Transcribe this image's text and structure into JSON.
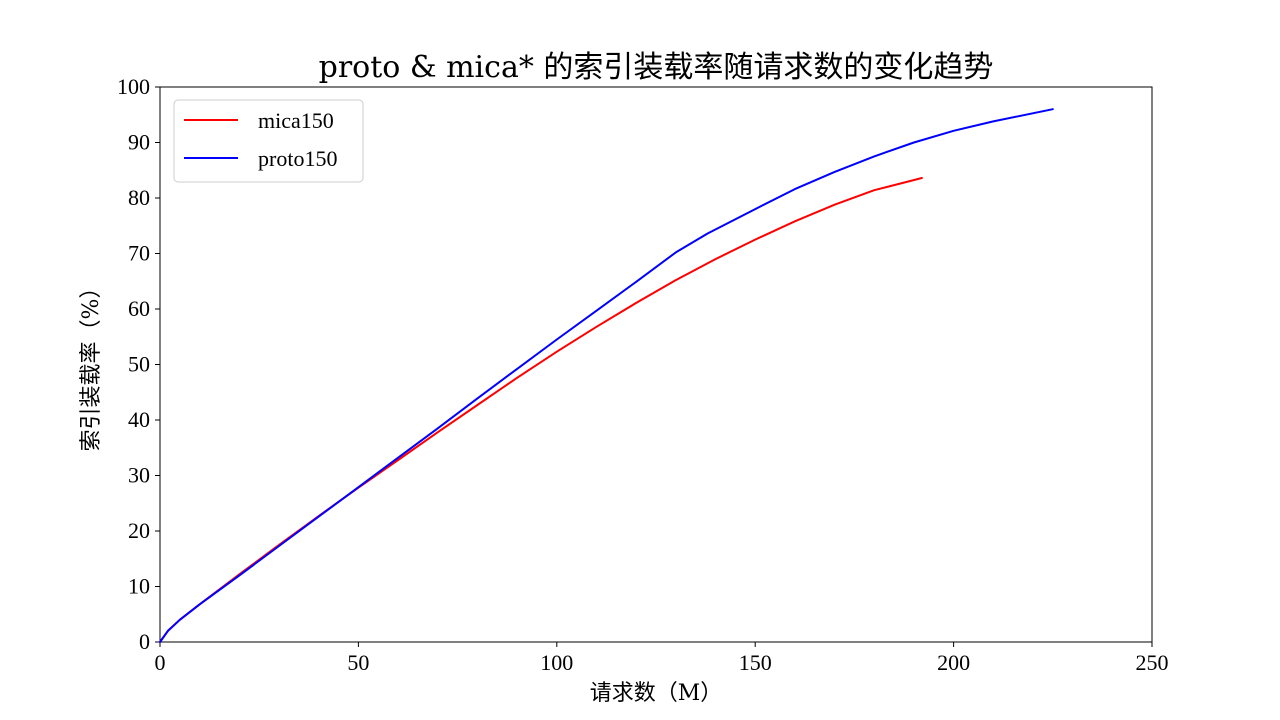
{
  "chart_data": {
    "type": "line",
    "title": "proto & mica* 的索引装载率随请求数的变化趋势",
    "xlabel": "请求数（M）",
    "ylabel": "索引装载率（%）",
    "xlim": [
      0,
      250
    ],
    "ylim": [
      0,
      100
    ],
    "x_ticks": [
      0,
      50,
      100,
      150,
      200,
      250
    ],
    "y_ticks": [
      0,
      10,
      20,
      30,
      40,
      50,
      60,
      70,
      80,
      90,
      100
    ],
    "grid": false,
    "legend_position": "top-left",
    "series": [
      {
        "name": "mica150",
        "color": "#ff0000",
        "x": [
          0,
          2,
          5,
          10,
          20,
          30,
          40,
          50,
          60,
          70,
          80,
          90,
          100,
          110,
          120,
          130,
          140,
          150,
          160,
          170,
          180,
          192
        ],
        "y": [
          0,
          2.0,
          4.0,
          6.8,
          12.2,
          17.5,
          22.7,
          27.8,
          32.8,
          37.8,
          42.7,
          47.6,
          52.3,
          56.8,
          61.1,
          65.2,
          69.0,
          72.5,
          75.8,
          78.8,
          81.4,
          83.6
        ]
      },
      {
        "name": "proto150",
        "color": "#0000ff",
        "x": [
          0,
          2,
          5,
          10,
          20,
          30,
          40,
          50,
          60,
          70,
          80,
          90,
          100,
          110,
          120,
          130,
          138,
          150,
          160,
          170,
          180,
          190,
          200,
          210,
          225
        ],
        "y": [
          0,
          2.0,
          4.0,
          6.8,
          12.0,
          17.3,
          22.6,
          27.9,
          33.2,
          38.5,
          43.9,
          49.2,
          54.5,
          59.7,
          64.9,
          70.2,
          73.6,
          78.0,
          81.6,
          84.7,
          87.5,
          90.0,
          92.1,
          93.8,
          96.0
        ]
      }
    ]
  }
}
